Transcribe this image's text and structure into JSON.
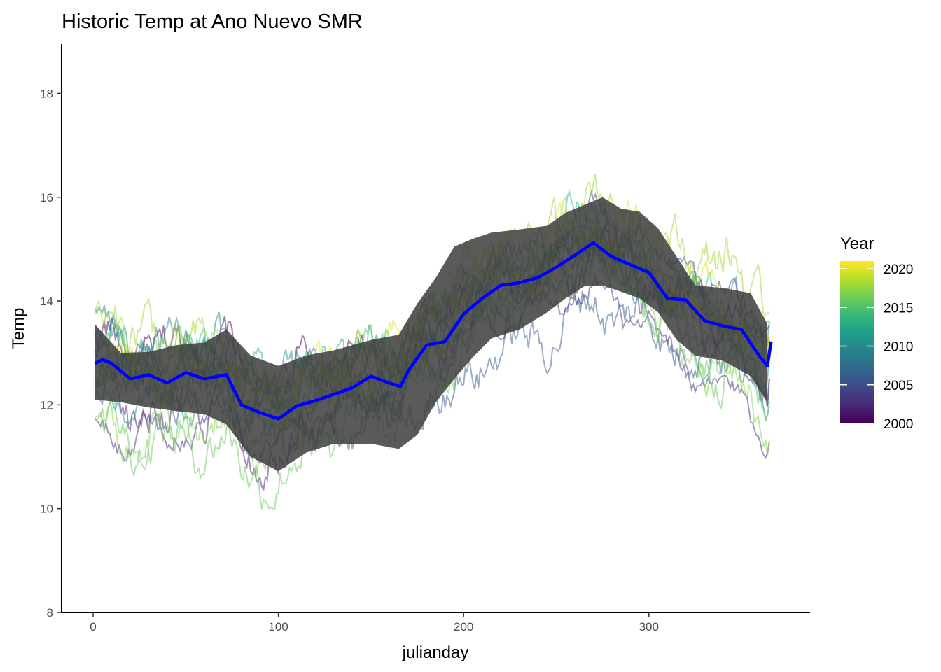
{
  "chart_data": {
    "type": "line",
    "title": "Historic Temp at Ano Nuevo SMR",
    "xlabel": "julianday",
    "ylabel": "Temp",
    "xlim": [
      -17,
      387
    ],
    "ylim": [
      8,
      18.95
    ],
    "x_ticks": [
      0,
      100,
      200,
      300
    ],
    "y_ticks": [
      8,
      10,
      12,
      14,
      16,
      18
    ],
    "grid": false,
    "legend": {
      "title": "Year",
      "placement": "right",
      "type": "colorbar",
      "min": 2000,
      "max": 2021,
      "ticks": [
        2000,
        2005,
        2010,
        2015,
        2020
      ],
      "palette": [
        "#440154",
        "#482878",
        "#3e4989",
        "#31688e",
        "#26828e",
        "#1f9e89",
        "#35b779",
        "#6ece58",
        "#b5de2b",
        "#fde725"
      ]
    },
    "years_plotted": [
      2000,
      2002,
      2003,
      2004,
      2006,
      2008,
      2009,
      2010,
      2011,
      2012,
      2013,
      2014,
      2015,
      2016,
      2017,
      2018,
      2019,
      2020,
      2021
    ],
    "line_opacity": 0.5,
    "mean_line": {
      "color": "#0000ff",
      "points": [
        [
          1,
          12.8
        ],
        [
          5,
          12.87
        ],
        [
          10,
          12.8
        ],
        [
          20,
          12.5
        ],
        [
          30,
          12.58
        ],
        [
          40,
          12.42
        ],
        [
          50,
          12.62
        ],
        [
          60,
          12.5
        ],
        [
          72,
          12.58
        ],
        [
          80,
          12.0
        ],
        [
          90,
          11.85
        ],
        [
          100,
          11.73
        ],
        [
          110,
          11.98
        ],
        [
          120,
          12.08
        ],
        [
          130,
          12.2
        ],
        [
          140,
          12.33
        ],
        [
          150,
          12.55
        ],
        [
          160,
          12.42
        ],
        [
          166,
          12.35
        ],
        [
          170,
          12.65
        ],
        [
          180,
          13.15
        ],
        [
          190,
          13.22
        ],
        [
          200,
          13.75
        ],
        [
          210,
          14.05
        ],
        [
          220,
          14.3
        ],
        [
          230,
          14.35
        ],
        [
          240,
          14.45
        ],
        [
          250,
          14.65
        ],
        [
          260,
          14.88
        ],
        [
          270,
          15.12
        ],
        [
          280,
          14.85
        ],
        [
          290,
          14.7
        ],
        [
          300,
          14.55
        ],
        [
          310,
          14.05
        ],
        [
          320,
          14.02
        ],
        [
          330,
          13.62
        ],
        [
          340,
          13.52
        ],
        [
          350,
          13.45
        ],
        [
          360,
          12.92
        ],
        [
          364,
          12.75
        ],
        [
          366,
          13.22
        ]
      ]
    },
    "band": {
      "color": "#3d3d3d",
      "upper": [
        [
          1,
          13.55
        ],
        [
          15,
          13.0
        ],
        [
          30,
          13.02
        ],
        [
          45,
          13.15
        ],
        [
          60,
          13.2
        ],
        [
          72,
          13.45
        ],
        [
          85,
          12.95
        ],
        [
          100,
          12.75
        ],
        [
          115,
          12.95
        ],
        [
          130,
          13.05
        ],
        [
          150,
          13.25
        ],
        [
          165,
          13.35
        ],
        [
          175,
          13.95
        ],
        [
          185,
          14.45
        ],
        [
          195,
          15.05
        ],
        [
          205,
          15.2
        ],
        [
          215,
          15.32
        ],
        [
          230,
          15.38
        ],
        [
          245,
          15.45
        ],
        [
          255,
          15.7
        ],
        [
          265,
          15.85
        ],
        [
          275,
          16.0
        ],
        [
          285,
          15.78
        ],
        [
          295,
          15.72
        ],
        [
          305,
          15.4
        ],
        [
          315,
          14.85
        ],
        [
          325,
          14.3
        ],
        [
          340,
          14.25
        ],
        [
          355,
          14.15
        ],
        [
          364,
          13.55
        ]
      ],
      "lower": [
        [
          1,
          12.1
        ],
        [
          15,
          12.05
        ],
        [
          30,
          11.95
        ],
        [
          45,
          11.88
        ],
        [
          60,
          11.82
        ],
        [
          72,
          11.62
        ],
        [
          85,
          11.0
        ],
        [
          100,
          10.72
        ],
        [
          115,
          11.08
        ],
        [
          130,
          11.25
        ],
        [
          150,
          11.25
        ],
        [
          165,
          11.15
        ],
        [
          175,
          11.42
        ],
        [
          185,
          12.05
        ],
        [
          195,
          12.5
        ],
        [
          205,
          12.92
        ],
        [
          215,
          13.28
        ],
        [
          230,
          13.45
        ],
        [
          245,
          13.78
        ],
        [
          255,
          14.05
        ],
        [
          265,
          14.28
        ],
        [
          275,
          14.3
        ],
        [
          285,
          14.18
        ],
        [
          295,
          14.05
        ],
        [
          305,
          13.78
        ],
        [
          315,
          13.25
        ],
        [
          325,
          12.95
        ],
        [
          340,
          12.85
        ],
        [
          355,
          12.55
        ],
        [
          364,
          12.05
        ]
      ]
    }
  }
}
